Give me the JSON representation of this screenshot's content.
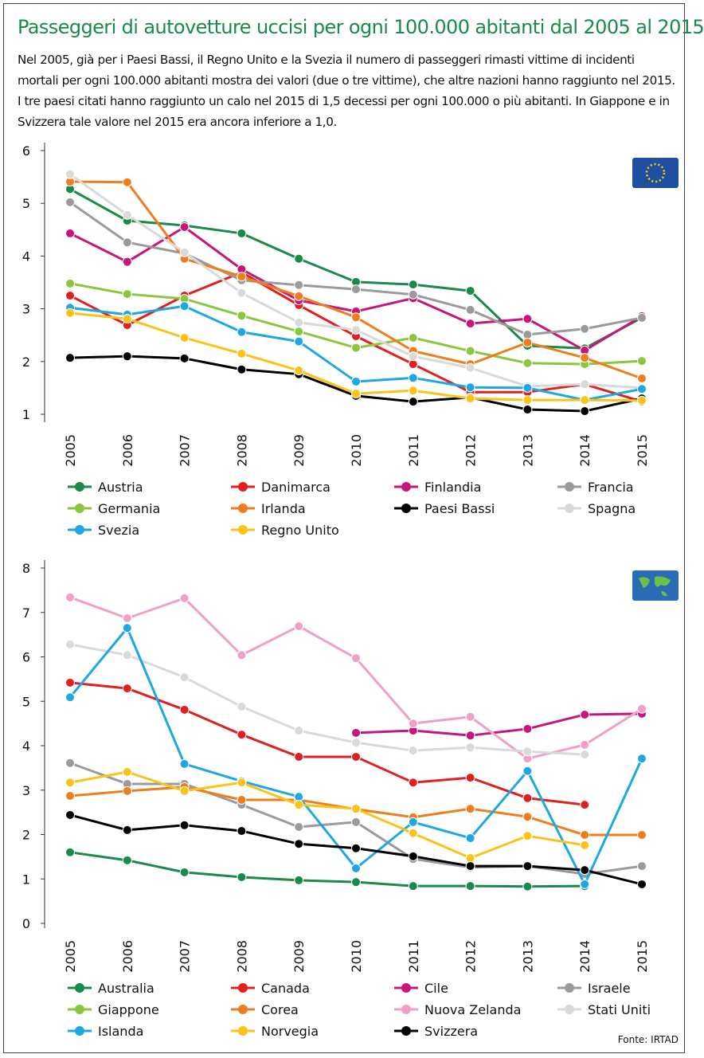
{
  "header": {
    "title": "Passeggeri di autovetture uccisi per ogni 100.000 abitanti dal 2005 al 2015",
    "subtitle": "Nel 2005, già per i Paesi Bassi, il Regno Unito e la Svezia il numero di passeggeri rimasti vittime di incidenti mortali per ogni 100.000 abitanti mostra dei valori (due o tre vittime), che altre nazioni hanno raggiunto nel 2015. I tre paesi citati hanno raggiunto un calo nel 2015 di 1,5 decessi per ogni 100.000 o più abitanti. In Giappone e in Svizzera tale valore nel 2015 era ancora inferiore a 1,0."
  },
  "source": "Fonte: IRTAD",
  "chart_data": [
    {
      "type": "line",
      "categories": [
        "2005",
        "2006",
        "2007",
        "2008",
        "2009",
        "2010",
        "2011",
        "2012",
        "2013",
        "2014",
        "2015"
      ],
      "ylim": [
        1,
        6
      ],
      "yticks": [
        1,
        2,
        3,
        4,
        5,
        6
      ],
      "series": [
        {
          "name": "Austria",
          "color": "#1a8a4a",
          "values": [
            5.27,
            4.67,
            4.58,
            4.43,
            3.95,
            3.51,
            3.46,
            3.34,
            2.3,
            2.25,
            2.83
          ]
        },
        {
          "name": "Danimarca",
          "color": "#e0201f",
          "values": [
            3.25,
            2.69,
            3.25,
            3.69,
            3.07,
            2.48,
            1.95,
            1.42,
            1.42,
            1.57,
            1.24
          ]
        },
        {
          "name": "Finlandia",
          "color": "#c8157a",
          "values": [
            4.43,
            3.89,
            4.55,
            3.75,
            3.16,
            2.95,
            3.2,
            2.72,
            2.81,
            2.21,
            2.86
          ]
        },
        {
          "name": "Francia",
          "color": "#9a9a9a",
          "values": [
            5.02,
            4.26,
            4.05,
            3.54,
            3.45,
            3.37,
            3.27,
            2.98,
            2.51,
            2.62,
            2.83
          ]
        },
        {
          "name": "Germania",
          "color": "#8cc63f",
          "values": [
            3.48,
            3.28,
            3.19,
            2.87,
            2.57,
            2.26,
            2.45,
            2.2,
            1.97,
            1.95,
            2.01
          ]
        },
        {
          "name": "Irlanda",
          "color": "#ee7d1e",
          "values": [
            5.41,
            5.4,
            3.95,
            3.61,
            3.24,
            2.84,
            2.2,
            1.95,
            2.36,
            2.07,
            1.68
          ]
        },
        {
          "name": "Paesi Bassi",
          "color": "#000000",
          "values": [
            2.07,
            2.1,
            2.06,
            1.85,
            1.76,
            1.35,
            1.24,
            1.32,
            1.09,
            1.06,
            1.3
          ]
        },
        {
          "name": "Spagna",
          "color": "#d9d9d9",
          "values": [
            5.55,
            4.78,
            4.07,
            3.3,
            2.74,
            2.6,
            2.1,
            1.88,
            1.53,
            1.57,
            1.5
          ]
        },
        {
          "name": "Svezia",
          "color": "#1ea7e1",
          "values": [
            3.02,
            2.89,
            3.05,
            2.56,
            2.38,
            1.62,
            1.69,
            1.51,
            1.5,
            1.27,
            1.48
          ]
        },
        {
          "name": "Regno Unito",
          "color": "#fbc31a",
          "values": [
            2.92,
            2.81,
            2.45,
            2.15,
            1.83,
            1.39,
            1.45,
            1.3,
            1.27,
            1.27,
            1.26
          ]
        }
      ]
    },
    {
      "type": "line",
      "categories": [
        "2005",
        "2006",
        "2007",
        "2008",
        "2009",
        "2010",
        "2011",
        "2012",
        "2013",
        "2014",
        "2015"
      ],
      "ylim": [
        0,
        8
      ],
      "yticks": [
        0,
        1,
        2,
        3,
        4,
        5,
        6,
        7,
        8
      ],
      "series": [
        {
          "name": "Australia",
          "color": "#1a8a4a",
          "values": [
            1.6,
            1.42,
            1.15,
            1.04,
            0.97,
            0.93,
            0.84,
            0.84,
            0.83,
            0.84,
            null
          ]
        },
        {
          "name": "Canada",
          "color": "#e0201f",
          "values": [
            5.42,
            5.29,
            4.81,
            4.25,
            3.75,
            3.75,
            3.17,
            3.28,
            2.82,
            2.67,
            null
          ]
        },
        {
          "name": "Cile",
          "color": "#c8157a",
          "values": [
            null,
            null,
            null,
            null,
            null,
            4.29,
            4.34,
            4.23,
            4.38,
            4.7,
            4.72
          ]
        },
        {
          "name": "Israele",
          "color": "#9a9a9a",
          "values": [
            3.61,
            3.14,
            3.14,
            2.67,
            2.17,
            2.28,
            1.45,
            1.26,
            1.29,
            1.11,
            1.29
          ]
        },
        {
          "name": "Giappone",
          "color": "#8cc63f",
          "values": [
            null,
            null,
            null,
            null,
            null,
            null,
            null,
            null,
            null,
            null,
            null
          ]
        },
        {
          "name": "Corea",
          "color": "#ee7d1e",
          "values": [
            2.87,
            2.98,
            3.07,
            2.78,
            2.78,
            2.57,
            2.39,
            2.58,
            2.4,
            1.99,
            1.99
          ]
        },
        {
          "name": "Nuova Zelanda",
          "color": "#f0a0c8",
          "values": [
            7.34,
            6.87,
            7.32,
            6.04,
            6.69,
            5.97,
            4.5,
            4.65,
            3.71,
            4.02,
            4.83
          ]
        },
        {
          "name": "Stati Uniti",
          "color": "#d9d9d9",
          "values": [
            6.28,
            6.04,
            5.54,
            4.88,
            4.34,
            4.07,
            3.89,
            3.96,
            3.87,
            3.8,
            null
          ]
        },
        {
          "name": "Islanda",
          "color": "#1ea7e1",
          "values": [
            5.09,
            6.65,
            3.59,
            3.2,
            2.85,
            1.24,
            2.28,
            1.92,
            3.43,
            0.88,
            3.71
          ]
        },
        {
          "name": "Norvegia",
          "color": "#fbc31a",
          "values": [
            3.17,
            3.41,
            2.98,
            3.17,
            2.67,
            2.58,
            2.03,
            1.47,
            1.97,
            1.76,
            null
          ]
        },
        {
          "name": "Svizzera",
          "color": "#000000",
          "values": [
            2.44,
            2.1,
            2.21,
            2.08,
            1.79,
            1.69,
            1.51,
            1.29,
            1.29,
            1.2,
            0.88
          ]
        }
      ]
    }
  ]
}
